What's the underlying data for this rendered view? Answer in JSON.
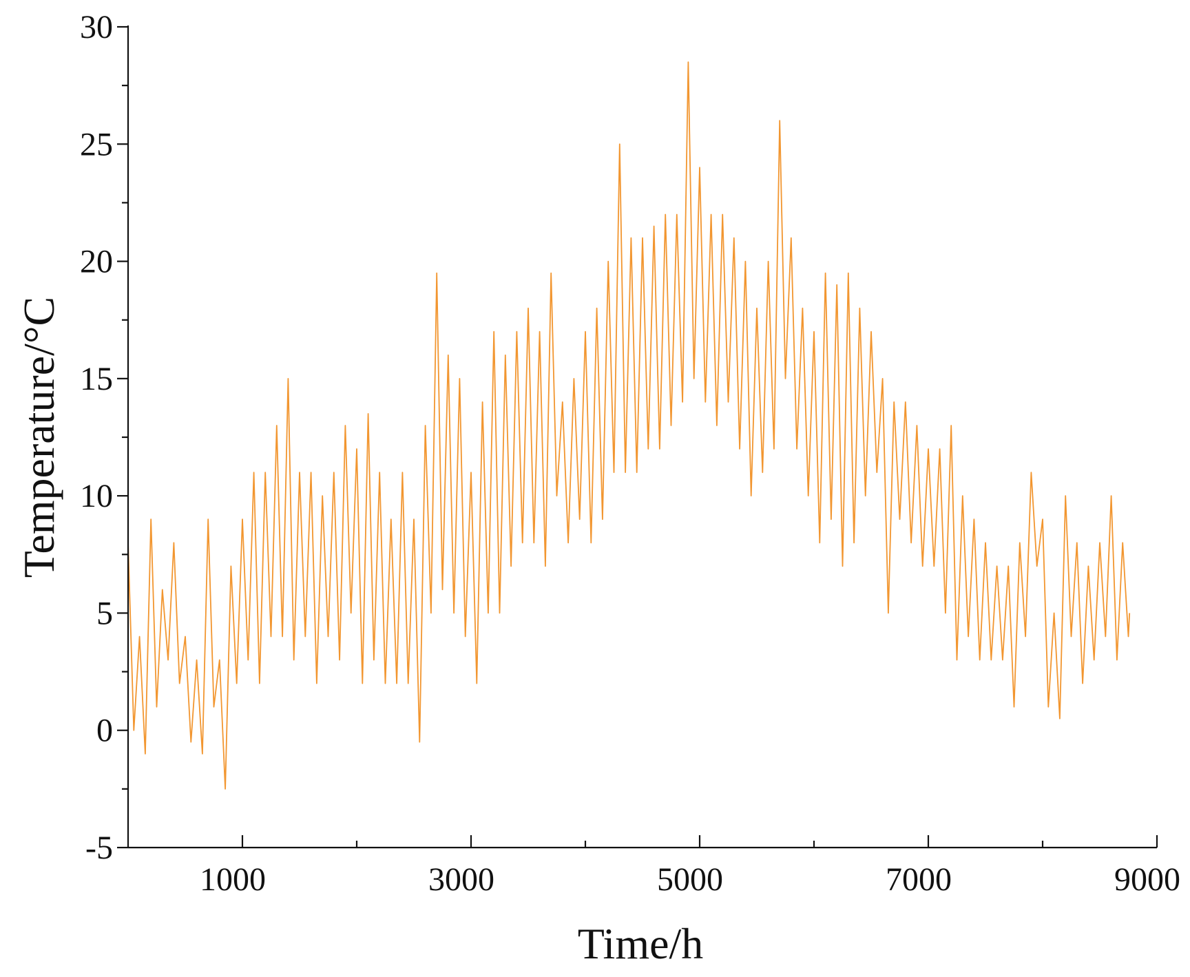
{
  "chart_data": {
    "type": "line",
    "x_label": "Time/h",
    "y_label": "Temperature/°C",
    "xlim": [
      0,
      9000
    ],
    "ylim": [
      -5,
      30
    ],
    "xticks": [
      1000,
      3000,
      5000,
      7000,
      9000
    ],
    "xminor_ticks": [
      2000,
      4000,
      6000,
      8000
    ],
    "yticks": [
      -5,
      0,
      5,
      10,
      15,
      20,
      25,
      30
    ],
    "yminor_ticks": [
      -2.5,
      2.5,
      7.5,
      12.5,
      17.5,
      22.5,
      27.5
    ],
    "series": [
      {
        "color": "#f29630",
        "x": [
          0,
          50,
          100,
          150,
          200,
          250,
          300,
          350,
          400,
          450,
          500,
          550,
          600,
          650,
          700,
          750,
          800,
          850,
          900,
          950,
          1000,
          1050,
          1100,
          1150,
          1200,
          1250,
          1300,
          1350,
          1400,
          1450,
          1500,
          1550,
          1600,
          1650,
          1700,
          1750,
          1800,
          1850,
          1900,
          1950,
          2000,
          2050,
          2100,
          2150,
          2200,
          2250,
          2300,
          2350,
          2400,
          2450,
          2500,
          2550,
          2600,
          2650,
          2700,
          2750,
          2800,
          2850,
          2900,
          2950,
          3000,
          3050,
          3100,
          3150,
          3200,
          3250,
          3300,
          3350,
          3400,
          3450,
          3500,
          3550,
          3600,
          3650,
          3700,
          3750,
          3800,
          3850,
          3900,
          3950,
          4000,
          4050,
          4100,
          4150,
          4200,
          4250,
          4300,
          4350,
          4400,
          4450,
          4500,
          4550,
          4600,
          4650,
          4700,
          4750,
          4800,
          4850,
          4900,
          4950,
          5000,
          5050,
          5100,
          5150,
          5200,
          5250,
          5300,
          5350,
          5400,
          5450,
          5500,
          5550,
          5600,
          5650,
          5700,
          5750,
          5800,
          5850,
          5900,
          5950,
          6000,
          6050,
          6100,
          6150,
          6200,
          6250,
          6300,
          6350,
          6400,
          6450,
          6500,
          6550,
          6600,
          6650,
          6700,
          6750,
          6800,
          6850,
          6900,
          6950,
          7000,
          7050,
          7100,
          7150,
          7200,
          7250,
          7300,
          7350,
          7400,
          7450,
          7500,
          7550,
          7600,
          7650,
          7700,
          7750,
          7800,
          7850,
          7900,
          7950,
          8000,
          8050,
          8100,
          8150,
          8200,
          8250,
          8300,
          8350,
          8400,
          8450,
          8500,
          8550,
          8600,
          8650,
          8700,
          8750,
          8760
        ],
        "values": [
          8,
          0,
          4,
          -1,
          9,
          1,
          6,
          3,
          8,
          2,
          4,
          -0.5,
          3,
          -1,
          9,
          1,
          3,
          -2.5,
          7,
          2,
          9,
          3,
          11,
          2,
          11,
          4,
          13,
          4,
          15,
          3,
          11,
          4,
          11,
          2,
          10,
          4,
          11,
          3,
          13,
          5,
          12,
          2,
          13.5,
          3,
          11,
          2,
          9,
          2,
          11,
          2,
          9,
          -0.5,
          13,
          5,
          19.5,
          6,
          16,
          5,
          15,
          4,
          11,
          2,
          14,
          5,
          17,
          5,
          16,
          7,
          17,
          8,
          18,
          8,
          17,
          7,
          19.5,
          10,
          14,
          8,
          15,
          9,
          17,
          8,
          18,
          9,
          20,
          11,
          25,
          11,
          21,
          11,
          21,
          12,
          21.5,
          12,
          22,
          13,
          22,
          14,
          28.5,
          15,
          24,
          14,
          22,
          13,
          22,
          14,
          21,
          12,
          20,
          10,
          18,
          11,
          20,
          12,
          26,
          15,
          21,
          12,
          18,
          10,
          17,
          8,
          19.5,
          9,
          19,
          7,
          19.5,
          8,
          18,
          10,
          17,
          11,
          15,
          5,
          14,
          9,
          14,
          8,
          13,
          7,
          12,
          7,
          12,
          5,
          13,
          3,
          10,
          4,
          9,
          3,
          8,
          3,
          7,
          3,
          7,
          1,
          8,
          4,
          11,
          7,
          9,
          1,
          5,
          0.5,
          10,
          4,
          8,
          2,
          7,
          3,
          8,
          4,
          10,
          3,
          8,
          4,
          5
        ]
      }
    ]
  }
}
